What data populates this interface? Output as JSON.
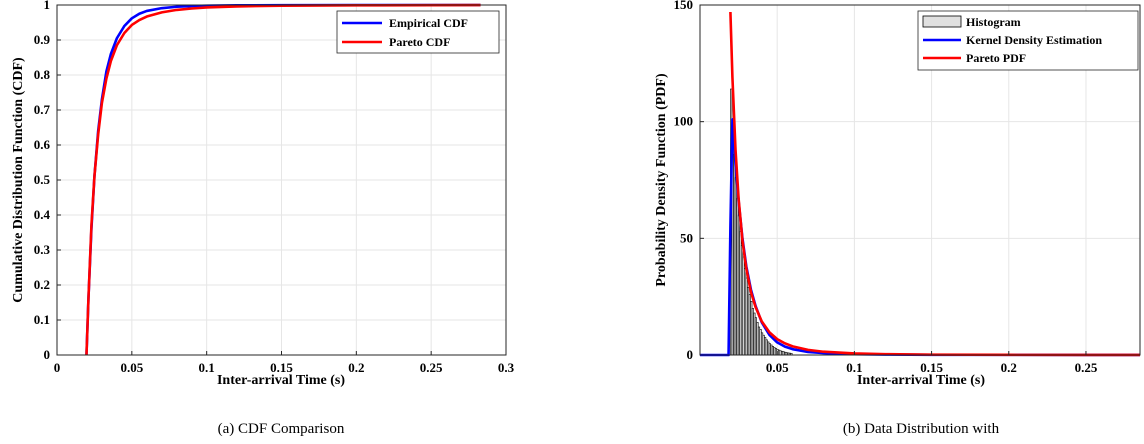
{
  "chart_data": [
    {
      "type": "line",
      "caption": "(a) CDF Comparison",
      "xlabel": "Inter-arrival Time (s)",
      "ylabel": "Cumulative Distribution Function (CDF)",
      "xlim": [
        0,
        0.3
      ],
      "ylim": [
        0,
        1
      ],
      "xticks": [
        0,
        0.05,
        0.1,
        0.15,
        0.2,
        0.25,
        0.3
      ],
      "xtick_labels": [
        "0",
        "0.05",
        "0.1",
        "0.15",
        "0.2",
        "0.25",
        "0.3"
      ],
      "yticks": [
        0,
        0.1,
        0.2,
        0.3,
        0.4,
        0.5,
        0.6,
        0.7,
        0.8,
        0.9,
        1
      ],
      "ytick_labels": [
        "0",
        "0.1",
        "0.2",
        "0.3",
        "0.4",
        "0.5",
        "0.6",
        "0.7",
        "0.8",
        "0.9",
        "1"
      ],
      "grid": true,
      "legend_position": "top-right",
      "series": [
        {
          "name": "Empirical CDF",
          "color": "#0000ff",
          "x": [
            0.0197,
            0.021,
            0.023,
            0.025,
            0.0275,
            0.03,
            0.033,
            0.036,
            0.04,
            0.045,
            0.05,
            0.055,
            0.06,
            0.07,
            0.08,
            0.09,
            0.1,
            0.12,
            0.15,
            0.2,
            0.25,
            0.283
          ],
          "y": [
            0,
            0.16,
            0.36,
            0.51,
            0.64,
            0.73,
            0.81,
            0.86,
            0.905,
            0.94,
            0.962,
            0.975,
            0.983,
            0.991,
            0.995,
            0.997,
            0.998,
            0.999,
            0.9995,
            1,
            1,
            1
          ]
        },
        {
          "name": "Pareto CDF",
          "color": "#ff0000",
          "x": [
            0.0197,
            0.021,
            0.023,
            0.025,
            0.0275,
            0.03,
            0.033,
            0.036,
            0.04,
            0.045,
            0.05,
            0.055,
            0.06,
            0.07,
            0.08,
            0.09,
            0.1,
            0.12,
            0.15,
            0.2,
            0.25,
            0.283
          ],
          "y": [
            0,
            0.16,
            0.37,
            0.51,
            0.63,
            0.72,
            0.79,
            0.84,
            0.885,
            0.92,
            0.943,
            0.957,
            0.967,
            0.979,
            0.986,
            0.99,
            0.993,
            0.996,
            0.998,
            0.999,
            0.9995,
            0.9997
          ]
        }
      ]
    },
    {
      "type": "line",
      "caption": "(b) Data Distribution with",
      "xlabel": "Inter-arrival Time (s)",
      "ylabel": "Probability Density Function (PDF)",
      "xlim": [
        0,
        0.285
      ],
      "ylim": [
        0,
        150
      ],
      "xticks": [
        0.05,
        0.1,
        0.15,
        0.2,
        0.25
      ],
      "xtick_labels": [
        "0.05",
        "0.1",
        "0.15",
        "0.2",
        "0.25"
      ],
      "yticks": [
        0,
        50,
        100,
        150
      ],
      "ytick_labels": [
        "0",
        "50",
        "100",
        "150"
      ],
      "grid": true,
      "legend_position": "top-right",
      "histogram": {
        "name": "Histogram",
        "color": "#e0e0e0",
        "bin_start": 0.0197,
        "bin_width": 0.001,
        "heights": [
          114,
          98,
          86,
          76,
          67,
          60,
          53,
          47,
          42,
          37,
          33,
          29,
          26,
          23,
          20,
          18,
          16,
          14,
          12,
          11,
          9.5,
          8.5,
          7.5,
          6.5,
          5.6,
          4.9,
          4.3,
          3.7,
          3.2,
          2.8,
          2.4,
          2.1,
          1.8,
          1.6,
          1.4,
          1.2,
          1.0,
          0.9,
          0.8,
          0.7
        ]
      },
      "series": [
        {
          "name": "Kernel Density Estimation",
          "color": "#0000ff",
          "x": [
            0,
            0.0185,
            0.0197,
            0.021,
            0.023,
            0.025,
            0.0275,
            0.03,
            0.033,
            0.036,
            0.04,
            0.045,
            0.05,
            0.055,
            0.06,
            0.07,
            0.08,
            0.1,
            0.12,
            0.15,
            0.2,
            0.25,
            0.285
          ],
          "y": [
            0,
            0,
            55,
            101,
            82,
            66,
            50,
            38,
            28,
            21,
            14,
            8.6,
            5.4,
            3.6,
            2.5,
            1.3,
            0.8,
            0.35,
            0.2,
            0.1,
            0.05,
            0.02,
            0.01
          ]
        },
        {
          "name": "Pareto PDF",
          "color": "#ff0000",
          "x": [
            0.0197,
            0.021,
            0.023,
            0.025,
            0.0275,
            0.03,
            0.033,
            0.036,
            0.04,
            0.045,
            0.05,
            0.055,
            0.06,
            0.07,
            0.08,
            0.1,
            0.12,
            0.15,
            0.2,
            0.25,
            0.285
          ],
          "y": [
            147,
            119,
            88,
            67,
            49,
            37,
            27,
            20.5,
            14.4,
            9.7,
            6.8,
            5.0,
            3.7,
            2.2,
            1.4,
            0.65,
            0.35,
            0.16,
            0.06,
            0.03,
            0.02
          ]
        }
      ]
    }
  ]
}
